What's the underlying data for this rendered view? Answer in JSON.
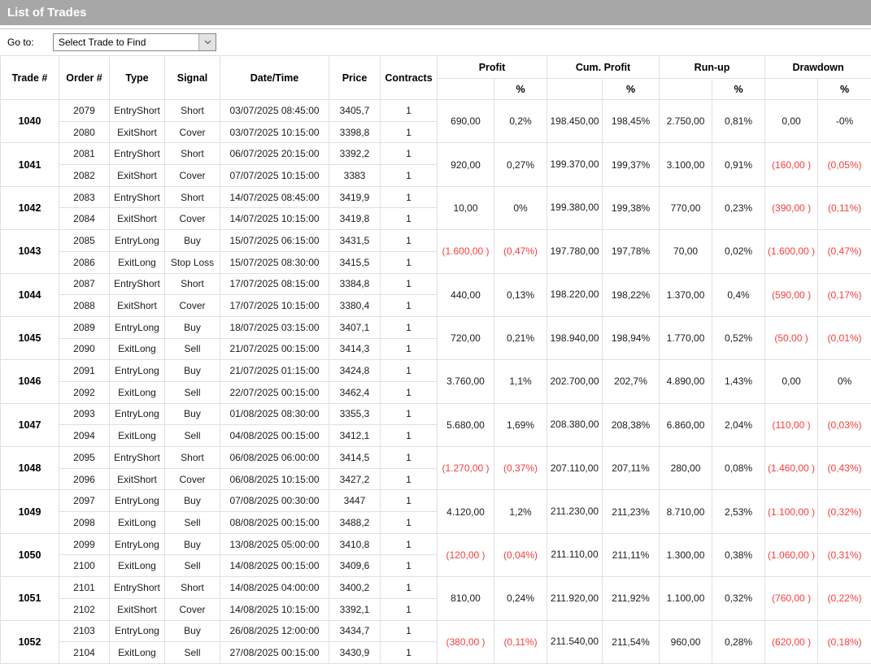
{
  "title": "List of Trades",
  "toolbar": {
    "goto_label": "Go to:",
    "dropdown_value": "Select Trade to Find"
  },
  "colors": {
    "negative_text": "#fb3c3c",
    "title_bar_bg": "#a7a7a7"
  },
  "table": {
    "headers": {
      "trade": "Trade #",
      "order": "Order #",
      "type": "Type",
      "signal": "Signal",
      "datetime": "Date/Time",
      "price": "Price",
      "contracts": "Contracts",
      "profit": "Profit",
      "cum_profit": "Cum. Profit",
      "runup": "Run-up",
      "drawdown": "Drawdown",
      "pct": "%"
    },
    "trades": [
      {
        "trade_no": "1040",
        "legs": [
          {
            "order": "2079",
            "type": "EntryShort",
            "signal": "Short",
            "datetime": "03/07/2025 08:45:00",
            "price": "3405,7",
            "contracts": "1"
          },
          {
            "order": "2080",
            "type": "ExitShort",
            "signal": "Cover",
            "datetime": "03/07/2025 10:15:00",
            "price": "3398,8",
            "contracts": "1"
          }
        ],
        "profit": {
          "value": "690,00",
          "pct": "0,2%"
        },
        "cum": {
          "value": "198.450,00",
          "pct": "198,45%"
        },
        "runup": {
          "value": "2.750,00",
          "pct": "0,81%"
        },
        "drawdown": {
          "value": "0,00",
          "pct": "-0%"
        }
      },
      {
        "trade_no": "1041",
        "legs": [
          {
            "order": "2081",
            "type": "EntryShort",
            "signal": "Short",
            "datetime": "06/07/2025 20:15:00",
            "price": "3392,2",
            "contracts": "1"
          },
          {
            "order": "2082",
            "type": "ExitShort",
            "signal": "Cover",
            "datetime": "07/07/2025 10:15:00",
            "price": "3383",
            "contracts": "1"
          }
        ],
        "profit": {
          "value": "920,00",
          "pct": "0,27%"
        },
        "cum": {
          "value": "199.370,00",
          "pct": "199,37%"
        },
        "runup": {
          "value": "3.100,00",
          "pct": "0,91%"
        },
        "drawdown": {
          "value": "(160,00 )",
          "pct": "(0,05%)"
        }
      },
      {
        "trade_no": "1042",
        "legs": [
          {
            "order": "2083",
            "type": "EntryShort",
            "signal": "Short",
            "datetime": "14/07/2025 08:45:00",
            "price": "3419,9",
            "contracts": "1"
          },
          {
            "order": "2084",
            "type": "ExitShort",
            "signal": "Cover",
            "datetime": "14/07/2025 10:15:00",
            "price": "3419,8",
            "contracts": "1"
          }
        ],
        "profit": {
          "value": "10,00",
          "pct": "0%"
        },
        "cum": {
          "value": "199.380,00",
          "pct": "199,38%"
        },
        "runup": {
          "value": "770,00",
          "pct": "0,23%"
        },
        "drawdown": {
          "value": "(390,00 )",
          "pct": "(0,11%)"
        }
      },
      {
        "trade_no": "1043",
        "legs": [
          {
            "order": "2085",
            "type": "EntryLong",
            "signal": "Buy",
            "datetime": "15/07/2025 06:15:00",
            "price": "3431,5",
            "contracts": "1"
          },
          {
            "order": "2086",
            "type": "ExitLong",
            "signal": "Stop Loss",
            "datetime": "15/07/2025 08:30:00",
            "price": "3415,5",
            "contracts": "1"
          }
        ],
        "profit": {
          "value": "(1.600,00 )",
          "pct": "(0,47%)"
        },
        "cum": {
          "value": "197.780,00",
          "pct": "197,78%"
        },
        "runup": {
          "value": "70,00",
          "pct": "0,02%"
        },
        "drawdown": {
          "value": "(1.600,00 )",
          "pct": "(0,47%)"
        }
      },
      {
        "trade_no": "1044",
        "legs": [
          {
            "order": "2087",
            "type": "EntryShort",
            "signal": "Short",
            "datetime": "17/07/2025 08:15:00",
            "price": "3384,8",
            "contracts": "1"
          },
          {
            "order": "2088",
            "type": "ExitShort",
            "signal": "Cover",
            "datetime": "17/07/2025 10:15:00",
            "price": "3380,4",
            "contracts": "1"
          }
        ],
        "profit": {
          "value": "440,00",
          "pct": "0,13%"
        },
        "cum": {
          "value": "198.220,00",
          "pct": "198,22%"
        },
        "runup": {
          "value": "1.370,00",
          "pct": "0,4%"
        },
        "drawdown": {
          "value": "(590,00 )",
          "pct": "(0,17%)"
        }
      },
      {
        "trade_no": "1045",
        "legs": [
          {
            "order": "2089",
            "type": "EntryLong",
            "signal": "Buy",
            "datetime": "18/07/2025 03:15:00",
            "price": "3407,1",
            "contracts": "1"
          },
          {
            "order": "2090",
            "type": "ExitLong",
            "signal": "Sell",
            "datetime": "21/07/2025 00:15:00",
            "price": "3414,3",
            "contracts": "1"
          }
        ],
        "profit": {
          "value": "720,00",
          "pct": "0,21%"
        },
        "cum": {
          "value": "198.940,00",
          "pct": "198,94%"
        },
        "runup": {
          "value": "1.770,00",
          "pct": "0,52%"
        },
        "drawdown": {
          "value": "(50,00 )",
          "pct": "(0,01%)"
        }
      },
      {
        "trade_no": "1046",
        "legs": [
          {
            "order": "2091",
            "type": "EntryLong",
            "signal": "Buy",
            "datetime": "21/07/2025 01:15:00",
            "price": "3424,8",
            "contracts": "1"
          },
          {
            "order": "2092",
            "type": "ExitLong",
            "signal": "Sell",
            "datetime": "22/07/2025 00:15:00",
            "price": "3462,4",
            "contracts": "1"
          }
        ],
        "profit": {
          "value": "3.760,00",
          "pct": "1,1%"
        },
        "cum": {
          "value": "202.700,00",
          "pct": "202,7%"
        },
        "runup": {
          "value": "4.890,00",
          "pct": "1,43%"
        },
        "drawdown": {
          "value": "0,00",
          "pct": "0%"
        }
      },
      {
        "trade_no": "1047",
        "legs": [
          {
            "order": "2093",
            "type": "EntryLong",
            "signal": "Buy",
            "datetime": "01/08/2025 08:30:00",
            "price": "3355,3",
            "contracts": "1"
          },
          {
            "order": "2094",
            "type": "ExitLong",
            "signal": "Sell",
            "datetime": "04/08/2025 00:15:00",
            "price": "3412,1",
            "contracts": "1"
          }
        ],
        "profit": {
          "value": "5.680,00",
          "pct": "1,69%"
        },
        "cum": {
          "value": "208.380,00",
          "pct": "208,38%"
        },
        "runup": {
          "value": "6.860,00",
          "pct": "2,04%"
        },
        "drawdown": {
          "value": "(110,00 )",
          "pct": "(0,03%)"
        }
      },
      {
        "trade_no": "1048",
        "legs": [
          {
            "order": "2095",
            "type": "EntryShort",
            "signal": "Short",
            "datetime": "06/08/2025 06:00:00",
            "price": "3414,5",
            "contracts": "1"
          },
          {
            "order": "2096",
            "type": "ExitShort",
            "signal": "Cover",
            "datetime": "06/08/2025 10:15:00",
            "price": "3427,2",
            "contracts": "1"
          }
        ],
        "profit": {
          "value": "(1.270,00 )",
          "pct": "(0,37%)"
        },
        "cum": {
          "value": "207.110,00",
          "pct": "207,11%"
        },
        "runup": {
          "value": "280,00",
          "pct": "0,08%"
        },
        "drawdown": {
          "value": "(1.460,00 )",
          "pct": "(0,43%)"
        }
      },
      {
        "trade_no": "1049",
        "legs": [
          {
            "order": "2097",
            "type": "EntryLong",
            "signal": "Buy",
            "datetime": "07/08/2025 00:30:00",
            "price": "3447",
            "contracts": "1"
          },
          {
            "order": "2098",
            "type": "ExitLong",
            "signal": "Sell",
            "datetime": "08/08/2025 00:15:00",
            "price": "3488,2",
            "contracts": "1"
          }
        ],
        "profit": {
          "value": "4.120,00",
          "pct": "1,2%"
        },
        "cum": {
          "value": "211.230,00",
          "pct": "211,23%"
        },
        "runup": {
          "value": "8.710,00",
          "pct": "2,53%"
        },
        "drawdown": {
          "value": "(1.100,00 )",
          "pct": "(0,32%)"
        }
      },
      {
        "trade_no": "1050",
        "legs": [
          {
            "order": "2099",
            "type": "EntryLong",
            "signal": "Buy",
            "datetime": "13/08/2025 05:00:00",
            "price": "3410,8",
            "contracts": "1"
          },
          {
            "order": "2100",
            "type": "ExitLong",
            "signal": "Sell",
            "datetime": "14/08/2025 00:15:00",
            "price": "3409,6",
            "contracts": "1"
          }
        ],
        "profit": {
          "value": "(120,00 )",
          "pct": "(0,04%)"
        },
        "cum": {
          "value": "211.110,00",
          "pct": "211,11%"
        },
        "runup": {
          "value": "1.300,00",
          "pct": "0,38%"
        },
        "drawdown": {
          "value": "(1.060,00 )",
          "pct": "(0,31%)"
        }
      },
      {
        "trade_no": "1051",
        "legs": [
          {
            "order": "2101",
            "type": "EntryShort",
            "signal": "Short",
            "datetime": "14/08/2025 04:00:00",
            "price": "3400,2",
            "contracts": "1"
          },
          {
            "order": "2102",
            "type": "ExitShort",
            "signal": "Cover",
            "datetime": "14/08/2025 10:15:00",
            "price": "3392,1",
            "contracts": "1"
          }
        ],
        "profit": {
          "value": "810,00",
          "pct": "0,24%"
        },
        "cum": {
          "value": "211.920,00",
          "pct": "211,92%"
        },
        "runup": {
          "value": "1.100,00",
          "pct": "0,32%"
        },
        "drawdown": {
          "value": "(760,00 )",
          "pct": "(0,22%)"
        }
      },
      {
        "trade_no": "1052",
        "legs": [
          {
            "order": "2103",
            "type": "EntryLong",
            "signal": "Buy",
            "datetime": "26/08/2025 12:00:00",
            "price": "3434,7",
            "contracts": "1"
          },
          {
            "order": "2104",
            "type": "ExitLong",
            "signal": "Sell",
            "datetime": "27/08/2025 00:15:00",
            "price": "3430,9",
            "contracts": "1"
          }
        ],
        "profit": {
          "value": "(380,00 )",
          "pct": "(0,11%)"
        },
        "cum": {
          "value": "211.540,00",
          "pct": "211,54%"
        },
        "runup": {
          "value": "960,00",
          "pct": "0,28%"
        },
        "drawdown": {
          "value": "(620,00 )",
          "pct": "(0,18%)"
        }
      }
    ]
  }
}
